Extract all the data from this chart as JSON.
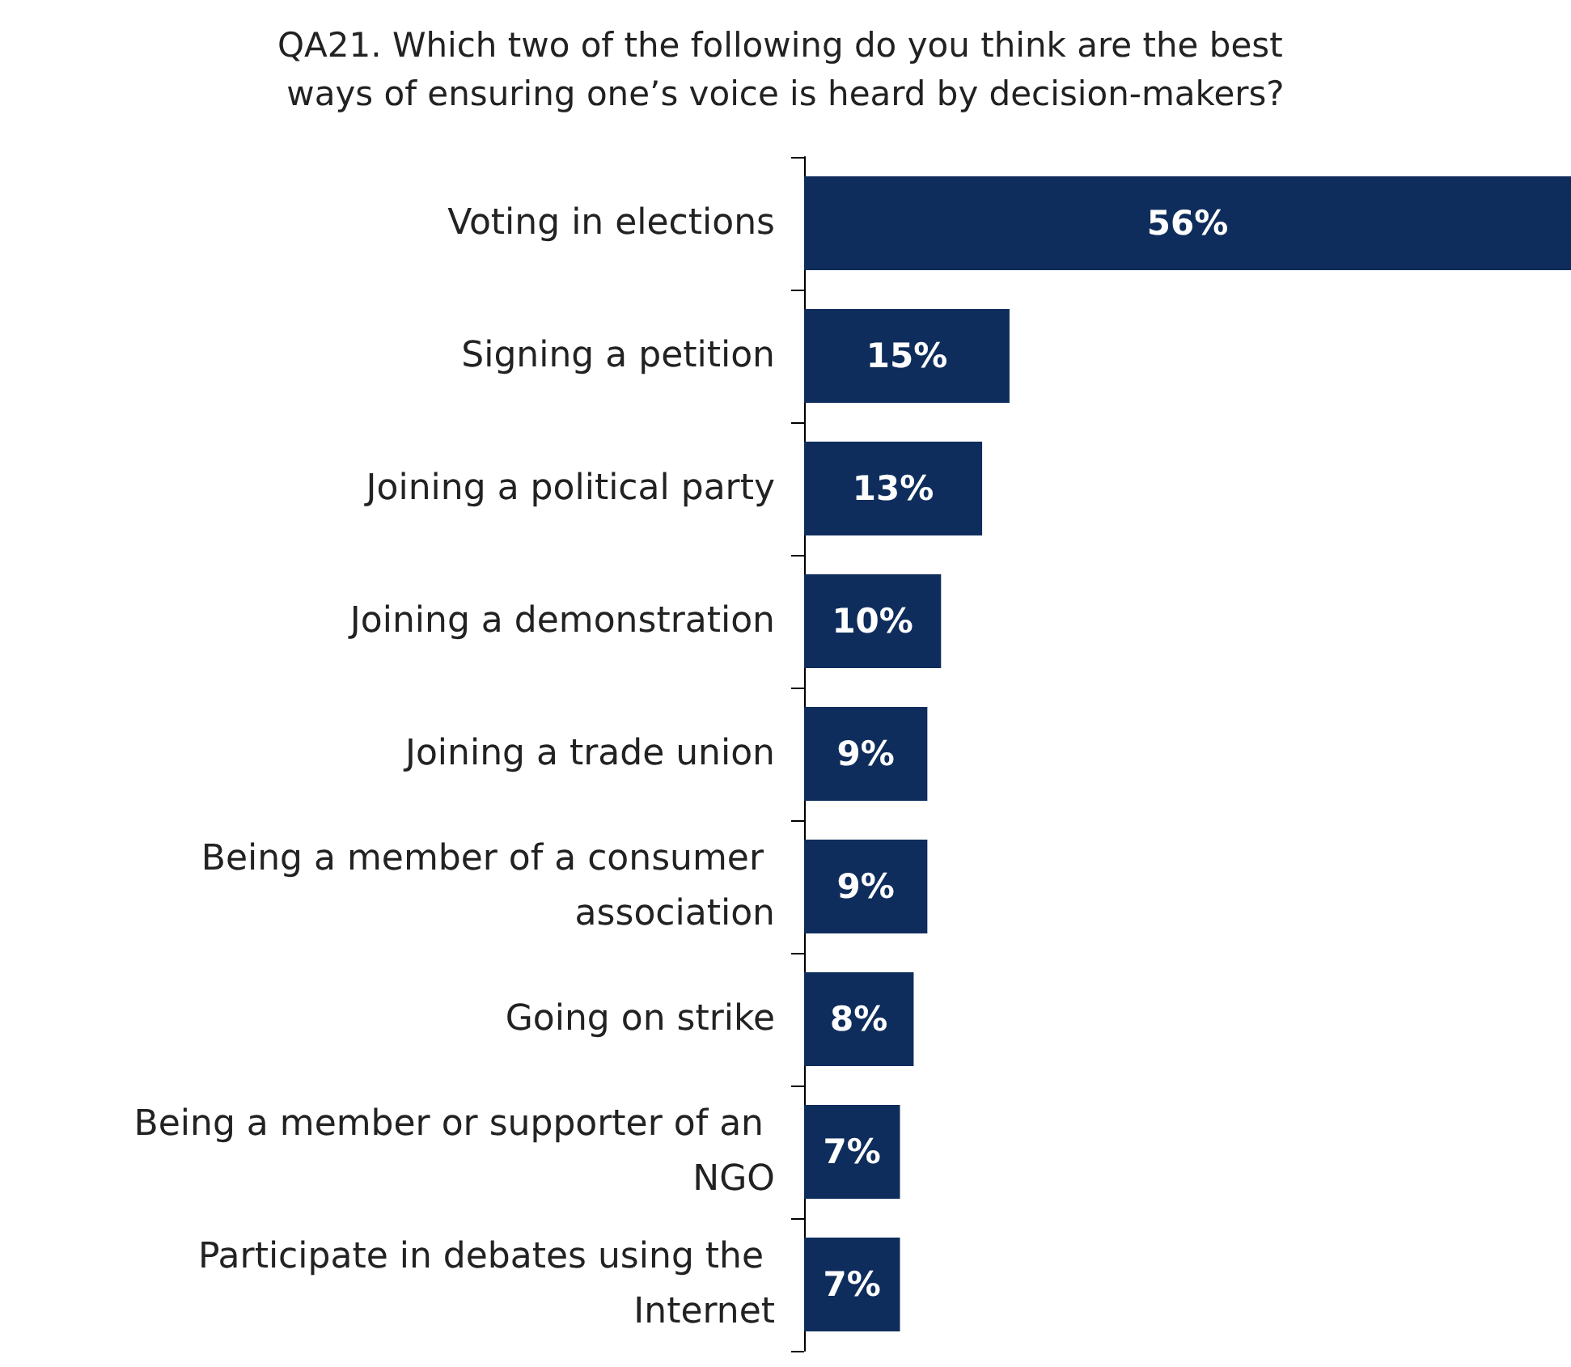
{
  "chart_data": {
    "type": "bar",
    "orientation": "horizontal",
    "title": "QA21. Which two of the following do you think are the best ways of ensuring one’s voice is heard by decision-makers?",
    "categories": [
      "Voting in elections",
      "Signing a petition",
      "Joining a political party",
      "Joining a demonstration",
      "Joining a trade union",
      "Being a member of a consumer association",
      "Going on strike",
      "Being a member or supporter of an NGO",
      "Participate in debates using the Internet"
    ],
    "values": [
      56,
      15,
      13,
      10,
      9,
      9,
      8,
      7,
      7
    ],
    "value_labels": [
      "56%",
      "15%",
      "13%",
      "10%",
      "9%",
      "9%",
      "8%",
      "7%",
      "7%"
    ],
    "color": "#0f2d5c"
  }
}
